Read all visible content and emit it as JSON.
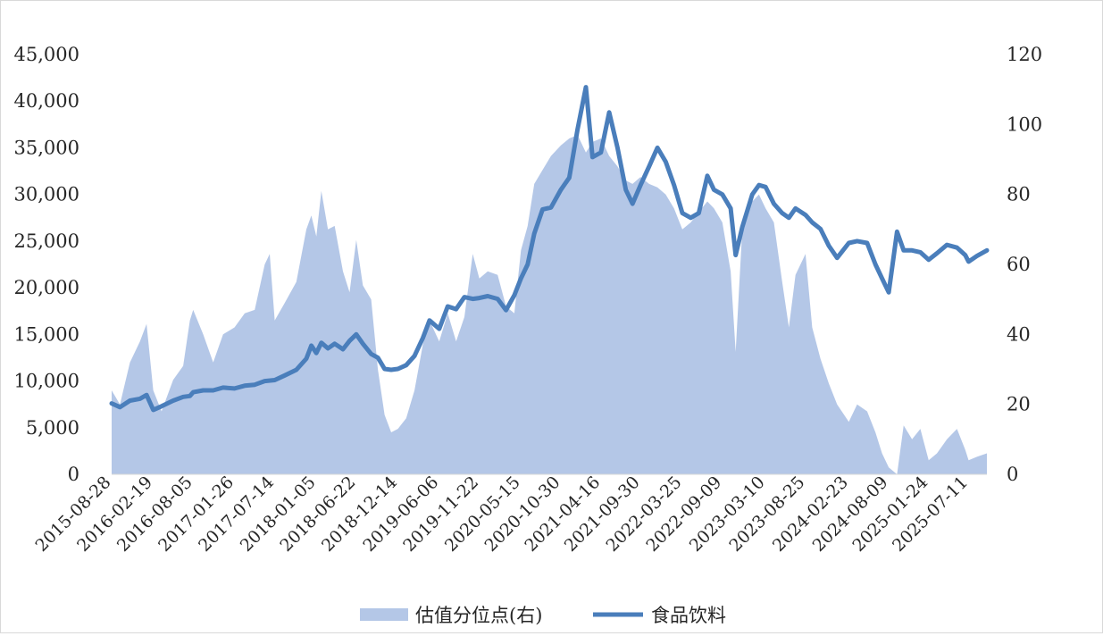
{
  "chart_data": {
    "type": "area+line",
    "title": "",
    "x_tick_labels": [
      "2015-08-28",
      "2016-02-19",
      "2016-08-05",
      "2017-01-26",
      "2017-07-14",
      "2018-01-05",
      "2018-06-22",
      "2018-12-14",
      "2019-06-06",
      "2019-11-22",
      "2020-05-15",
      "2020-10-30",
      "2021-04-16",
      "2021-09-30",
      "2022-03-25",
      "2022-09-09",
      "2023-03-10",
      "2023-08-25",
      "2024-02-23",
      "2024-08-09",
      "2025-01-24",
      "2025-07-11"
    ],
    "y_left": {
      "min": 0,
      "max": 45000,
      "step": 5000,
      "tick_labels": [
        "0",
        "5,000",
        "10,000",
        "15,000",
        "20,000",
        "25,000",
        "30,000",
        "35,000",
        "40,000",
        "45,000"
      ]
    },
    "y_right": {
      "min": 0,
      "max": 120,
      "step": 20,
      "tick_labels": [
        "0",
        "20",
        "40",
        "60",
        "80",
        "100",
        "120"
      ]
    },
    "legend_position": "bottom",
    "colors": {
      "area": "#b4c7e7",
      "line": "#4a7ebb"
    },
    "series": [
      {
        "name": "估值分位点(右)",
        "type": "area",
        "axis": "right",
        "points": [
          [
            "2015-08-28",
            24
          ],
          [
            "2015-10-02",
            20
          ],
          [
            "2015-11-13",
            32
          ],
          [
            "2015-12-25",
            38
          ],
          [
            "2016-01-22",
            43
          ],
          [
            "2016-02-19",
            24
          ],
          [
            "2016-03-25",
            18
          ],
          [
            "2016-05-13",
            27
          ],
          [
            "2016-06-24",
            31
          ],
          [
            "2016-07-22",
            44
          ],
          [
            "2016-08-05",
            47
          ],
          [
            "2016-09-16",
            40
          ],
          [
            "2016-10-28",
            32
          ],
          [
            "2016-12-09",
            40
          ],
          [
            "2017-01-26",
            42
          ],
          [
            "2017-03-10",
            46
          ],
          [
            "2017-04-21",
            47
          ],
          [
            "2017-06-02",
            60
          ],
          [
            "2017-06-23",
            63
          ],
          [
            "2017-07-14",
            44
          ],
          [
            "2017-08-25",
            49
          ],
          [
            "2017-10-13",
            55
          ],
          [
            "2017-11-24",
            70
          ],
          [
            "2017-12-15",
            74
          ],
          [
            "2018-01-05",
            68
          ],
          [
            "2018-01-26",
            81
          ],
          [
            "2018-02-23",
            70
          ],
          [
            "2018-03-23",
            71
          ],
          [
            "2018-04-27",
            58
          ],
          [
            "2018-05-25",
            52
          ],
          [
            "2018-06-22",
            67
          ],
          [
            "2018-07-20",
            54
          ],
          [
            "2018-08-24",
            50
          ],
          [
            "2018-09-21",
            30
          ],
          [
            "2018-10-19",
            17
          ],
          [
            "2018-11-16",
            12
          ],
          [
            "2018-12-14",
            13
          ],
          [
            "2019-01-18",
            16
          ],
          [
            "2019-02-22",
            24
          ],
          [
            "2019-03-29",
            37
          ],
          [
            "2019-04-26",
            44
          ],
          [
            "2019-06-06",
            38
          ],
          [
            "2019-07-12",
            46
          ],
          [
            "2019-08-16",
            38
          ],
          [
            "2019-09-20",
            45
          ],
          [
            "2019-10-25",
            63
          ],
          [
            "2019-11-22",
            56
          ],
          [
            "2019-12-27",
            58
          ],
          [
            "2020-02-07",
            57
          ],
          [
            "2020-03-13",
            48
          ],
          [
            "2020-04-17",
            46
          ],
          [
            "2020-05-15",
            64
          ],
          [
            "2020-06-12",
            71
          ],
          [
            "2020-07-10",
            83
          ],
          [
            "2020-08-14",
            87
          ],
          [
            "2020-09-18",
            91
          ],
          [
            "2020-10-30",
            94
          ],
          [
            "2020-12-04",
            96
          ],
          [
            "2021-01-08",
            97
          ],
          [
            "2021-02-12",
            92
          ],
          [
            "2021-03-12",
            95
          ],
          [
            "2021-04-16",
            96
          ],
          [
            "2021-05-21",
            91
          ],
          [
            "2021-06-25",
            88
          ],
          [
            "2021-07-30",
            84
          ],
          [
            "2021-08-27",
            83
          ],
          [
            "2021-09-30",
            85
          ],
          [
            "2021-11-05",
            83
          ],
          [
            "2021-12-10",
            82
          ],
          [
            "2022-01-14",
            80
          ],
          [
            "2022-02-18",
            76
          ],
          [
            "2022-03-25",
            70
          ],
          [
            "2022-04-29",
            72
          ],
          [
            "2022-06-02",
            75
          ],
          [
            "2022-07-08",
            78
          ],
          [
            "2022-08-05",
            76
          ],
          [
            "2022-09-09",
            72
          ],
          [
            "2022-10-14",
            58
          ],
          [
            "2022-11-04",
            35
          ],
          [
            "2022-12-02",
            70
          ],
          [
            "2023-01-13",
            78
          ],
          [
            "2023-02-10",
            80
          ],
          [
            "2023-03-10",
            76
          ],
          [
            "2023-04-14",
            72
          ],
          [
            "2023-05-19",
            55
          ],
          [
            "2023-06-16",
            42
          ],
          [
            "2023-07-14",
            57
          ],
          [
            "2023-08-25",
            63
          ],
          [
            "2023-09-22",
            42
          ],
          [
            "2023-10-27",
            33
          ],
          [
            "2023-12-01",
            26
          ],
          [
            "2024-01-05",
            20
          ],
          [
            "2024-02-23",
            15
          ],
          [
            "2024-03-29",
            20
          ],
          [
            "2024-05-10",
            18
          ],
          [
            "2024-06-14",
            12
          ],
          [
            "2024-07-12",
            6
          ],
          [
            "2024-08-09",
            2
          ],
          [
            "2024-09-13",
            0
          ],
          [
            "2024-10-11",
            14
          ],
          [
            "2024-11-15",
            10
          ],
          [
            "2024-12-20",
            13
          ],
          [
            "2025-01-24",
            4
          ],
          [
            "2025-02-28",
            6
          ],
          [
            "2025-04-11",
            10
          ],
          [
            "2025-05-23",
            13
          ],
          [
            "2025-06-27",
            7
          ],
          [
            "2025-07-11",
            4
          ],
          [
            "2025-08-15",
            5
          ],
          [
            "2025-09-26",
            6
          ]
        ]
      },
      {
        "name": "食品饮料",
        "type": "line",
        "axis": "left",
        "points": [
          [
            "2015-08-28",
            7600
          ],
          [
            "2015-10-02",
            7200
          ],
          [
            "2015-11-13",
            7900
          ],
          [
            "2015-12-25",
            8100
          ],
          [
            "2016-01-22",
            8500
          ],
          [
            "2016-02-19",
            6900
          ],
          [
            "2016-03-25",
            7300
          ],
          [
            "2016-05-13",
            7900
          ],
          [
            "2016-06-24",
            8300
          ],
          [
            "2016-07-22",
            8400
          ],
          [
            "2016-08-05",
            8800
          ],
          [
            "2016-09-16",
            9000
          ],
          [
            "2016-10-28",
            9000
          ],
          [
            "2016-12-09",
            9300
          ],
          [
            "2017-01-26",
            9200
          ],
          [
            "2017-03-10",
            9500
          ],
          [
            "2017-04-21",
            9600
          ],
          [
            "2017-06-02",
            10000
          ],
          [
            "2017-07-14",
            10100
          ],
          [
            "2017-08-25",
            10600
          ],
          [
            "2017-10-13",
            11200
          ],
          [
            "2017-11-24",
            12400
          ],
          [
            "2017-12-15",
            13800
          ],
          [
            "2018-01-05",
            13000
          ],
          [
            "2018-01-26",
            14100
          ],
          [
            "2018-02-23",
            13500
          ],
          [
            "2018-03-23",
            14000
          ],
          [
            "2018-04-27",
            13400
          ],
          [
            "2018-05-25",
            14300
          ],
          [
            "2018-06-22",
            15000
          ],
          [
            "2018-07-20",
            14000
          ],
          [
            "2018-08-24",
            12900
          ],
          [
            "2018-09-21",
            12500
          ],
          [
            "2018-10-19",
            11300
          ],
          [
            "2018-11-16",
            11200
          ],
          [
            "2018-12-14",
            11300
          ],
          [
            "2019-01-18",
            11700
          ],
          [
            "2019-02-22",
            12700
          ],
          [
            "2019-03-29",
            14600
          ],
          [
            "2019-04-26",
            16500
          ],
          [
            "2019-06-06",
            15600
          ],
          [
            "2019-07-12",
            18000
          ],
          [
            "2019-08-16",
            17700
          ],
          [
            "2019-09-20",
            19000
          ],
          [
            "2019-10-25",
            18800
          ],
          [
            "2019-11-22",
            18900
          ],
          [
            "2019-12-27",
            19100
          ],
          [
            "2020-02-07",
            18800
          ],
          [
            "2020-03-13",
            17600
          ],
          [
            "2020-04-17",
            19200
          ],
          [
            "2020-05-15",
            21000
          ],
          [
            "2020-06-12",
            22500
          ],
          [
            "2020-07-10",
            25800
          ],
          [
            "2020-08-14",
            28400
          ],
          [
            "2020-09-18",
            28600
          ],
          [
            "2020-10-30",
            30500
          ],
          [
            "2020-12-04",
            31800
          ],
          [
            "2021-01-08",
            37000
          ],
          [
            "2021-02-12",
            41500
          ],
          [
            "2021-03-12",
            34000
          ],
          [
            "2021-04-16",
            34500
          ],
          [
            "2021-05-21",
            38800
          ],
          [
            "2021-06-25",
            35000
          ],
          [
            "2021-07-30",
            30500
          ],
          [
            "2021-08-27",
            29000
          ],
          [
            "2021-09-30",
            31000
          ],
          [
            "2021-11-05",
            33000
          ],
          [
            "2021-12-10",
            35000
          ],
          [
            "2022-01-14",
            33500
          ],
          [
            "2022-02-18",
            31000
          ],
          [
            "2022-03-25",
            28000
          ],
          [
            "2022-04-29",
            27500
          ],
          [
            "2022-06-02",
            28000
          ],
          [
            "2022-07-08",
            32000
          ],
          [
            "2022-08-05",
            30500
          ],
          [
            "2022-09-09",
            30000
          ],
          [
            "2022-10-14",
            28500
          ],
          [
            "2022-11-04",
            23500
          ],
          [
            "2022-12-02",
            26500
          ],
          [
            "2023-01-13",
            30000
          ],
          [
            "2023-02-10",
            31000
          ],
          [
            "2023-03-10",
            30800
          ],
          [
            "2023-04-14",
            29000
          ],
          [
            "2023-05-19",
            28000
          ],
          [
            "2023-06-16",
            27500
          ],
          [
            "2023-07-14",
            28500
          ],
          [
            "2023-08-25",
            27800
          ],
          [
            "2023-09-22",
            27000
          ],
          [
            "2023-10-27",
            26300
          ],
          [
            "2023-12-01",
            24500
          ],
          [
            "2024-01-05",
            23200
          ],
          [
            "2024-02-23",
            24800
          ],
          [
            "2024-03-29",
            25000
          ],
          [
            "2024-05-10",
            24800
          ],
          [
            "2024-06-14",
            22500
          ],
          [
            "2024-07-12",
            21000
          ],
          [
            "2024-08-09",
            19500
          ],
          [
            "2024-09-13",
            26000
          ],
          [
            "2024-10-11",
            24000
          ],
          [
            "2024-11-15",
            24000
          ],
          [
            "2024-12-20",
            23800
          ],
          [
            "2025-01-24",
            23000
          ],
          [
            "2025-02-28",
            23700
          ],
          [
            "2025-04-11",
            24600
          ],
          [
            "2025-05-23",
            24300
          ],
          [
            "2025-06-27",
            23500
          ],
          [
            "2025-07-11",
            22800
          ],
          [
            "2025-08-15",
            23400
          ],
          [
            "2025-09-26",
            24000
          ]
        ]
      }
    ]
  }
}
